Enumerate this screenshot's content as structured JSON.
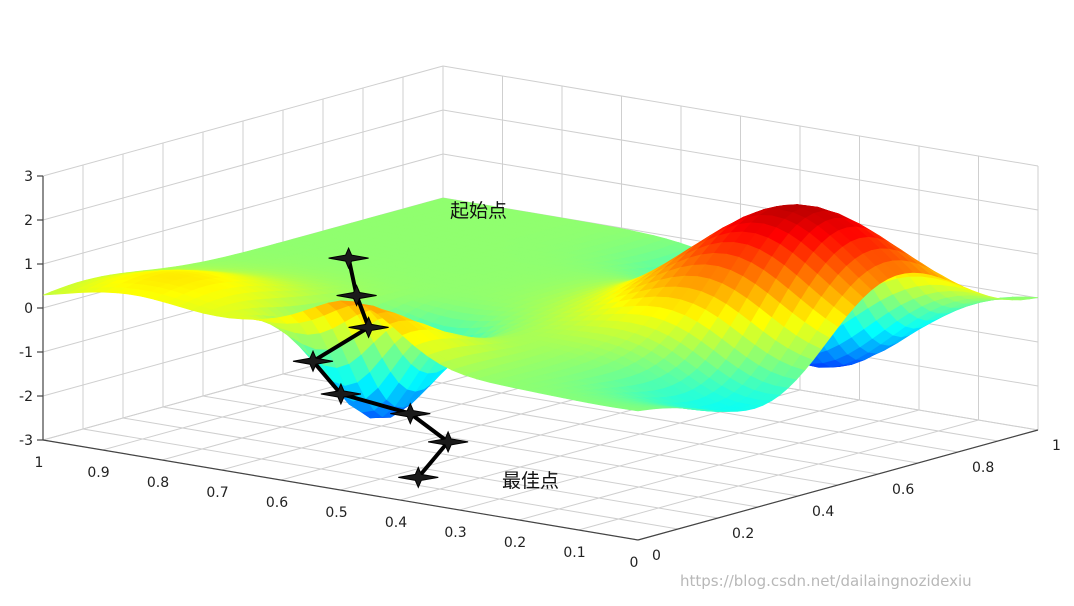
{
  "chart_data": {
    "type": "surface3d",
    "colormap": "jet",
    "grid": true,
    "axes": {
      "x": {
        "range": [
          0,
          1
        ],
        "ticks": [
          "0",
          "0.1",
          "0.2",
          "0.3",
          "0.4",
          "0.5",
          "0.6",
          "0.7",
          "0.8",
          "0.9",
          "1"
        ]
      },
      "y": {
        "range": [
          0,
          1
        ],
        "ticks": [
          "0",
          "0.2",
          "0.4",
          "0.6",
          "0.8",
          "1"
        ]
      },
      "z": {
        "range": [
          -3,
          3
        ],
        "ticks": [
          "-3",
          "-2",
          "-1",
          "0",
          "1",
          "2",
          "3"
        ]
      }
    },
    "path": {
      "points": [
        {
          "x": 0.52,
          "y": 0.05,
          "z": 2.1
        },
        {
          "x": 0.52,
          "y": 0.07,
          "z": 1.2
        },
        {
          "x": 0.52,
          "y": 0.1,
          "z": 0.4
        },
        {
          "x": 0.6,
          "y": 0.08,
          "z": -0.5
        },
        {
          "x": 0.58,
          "y": 0.12,
          "z": -1.3
        },
        {
          "x": 0.45,
          "y": 0.1,
          "z": -1.4
        },
        {
          "x": 0.42,
          "y": 0.15,
          "z": -2.1
        },
        {
          "x": 0.45,
          "y": 0.12,
          "z": -2.9
        }
      ]
    },
    "annotations": {
      "start": "起始点",
      "best": "最佳点"
    }
  },
  "watermark": "https://blog.csdn.net/dailaingnozidexiu"
}
